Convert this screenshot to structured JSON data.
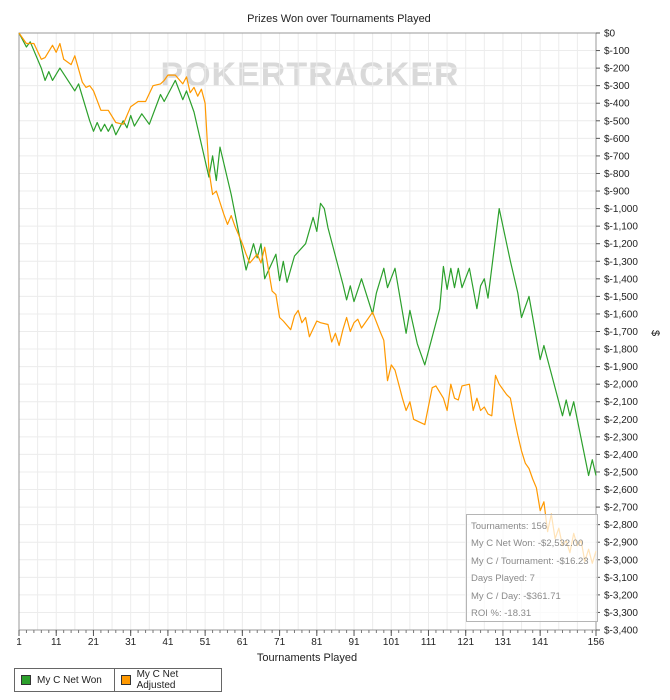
{
  "chart_data": {
    "type": "line",
    "title": "Prizes Won over Tournaments Played",
    "xlabel": "Tournaments Played",
    "ylabel": "$",
    "watermark": "POKERTRACKER",
    "xlim": [
      1,
      156
    ],
    "ylim": [
      -3400,
      0
    ],
    "x_ticks": [
      1,
      11,
      21,
      31,
      41,
      51,
      61,
      71,
      81,
      91,
      101,
      111,
      121,
      131,
      141,
      156
    ],
    "y_ticks": [
      0,
      -100,
      -200,
      -300,
      -400,
      -500,
      -600,
      -700,
      -800,
      -900,
      -1000,
      -1100,
      -1200,
      -1300,
      -1400,
      -1500,
      -1600,
      -1700,
      -1800,
      -1900,
      -2000,
      -2100,
      -2200,
      -2300,
      -2400,
      -2500,
      -2600,
      -2700,
      -2800,
      -2900,
      -3000,
      -3100,
      -3200,
      -3300,
      -3400
    ],
    "y_tick_labels": [
      "$0",
      "$-100",
      "$-200",
      "$-300",
      "$-400",
      "$-500",
      "$-600",
      "$-700",
      "$-800",
      "$-900",
      "$-1,000",
      "$-1,100",
      "$-1,200",
      "$-1,300",
      "$-1,400",
      "$-1,500",
      "$-1,600",
      "$-1,700",
      "$-1,800",
      "$-1,900",
      "$-2,000",
      "$-2,100",
      "$-2,200",
      "$-2,300",
      "$-2,400",
      "$-2,500",
      "$-2,600",
      "$-2,700",
      "$-2,800",
      "$-2,900",
      "$-3,000",
      "$-3,100",
      "$-3,200",
      "$-3,300",
      "$-3,400"
    ],
    "grid": true,
    "legend_position": "bottom-left",
    "series": [
      {
        "name": "My C Net Won",
        "color": "#2ca02c",
        "points": [
          [
            1,
            0
          ],
          [
            3,
            -80
          ],
          [
            4,
            -50
          ],
          [
            7,
            -200
          ],
          [
            8,
            -270
          ],
          [
            9,
            -220
          ],
          [
            10,
            -270
          ],
          [
            12,
            -200
          ],
          [
            16,
            -330
          ],
          [
            17,
            -290
          ],
          [
            20,
            -500
          ],
          [
            21,
            -560
          ],
          [
            22,
            -510
          ],
          [
            23,
            -560
          ],
          [
            24,
            -520
          ],
          [
            25,
            -560
          ],
          [
            26,
            -520
          ],
          [
            27,
            -580
          ],
          [
            29,
            -500
          ],
          [
            30,
            -540
          ],
          [
            31,
            -470
          ],
          [
            32,
            -530
          ],
          [
            34,
            -460
          ],
          [
            36,
            -520
          ],
          [
            39,
            -350
          ],
          [
            40,
            -390
          ],
          [
            43,
            -270
          ],
          [
            45,
            -380
          ],
          [
            46,
            -330
          ],
          [
            48,
            -450
          ],
          [
            52,
            -820
          ],
          [
            53,
            -700
          ],
          [
            54,
            -840
          ],
          [
            55,
            -650
          ],
          [
            58,
            -920
          ],
          [
            62,
            -1350
          ],
          [
            64,
            -1200
          ],
          [
            65,
            -1280
          ],
          [
            66,
            -1200
          ],
          [
            67,
            -1400
          ],
          [
            70,
            -1260
          ],
          [
            71,
            -1410
          ],
          [
            72,
            -1300
          ],
          [
            73,
            -1420
          ],
          [
            75,
            -1270
          ],
          [
            78,
            -1200
          ],
          [
            80,
            -1050
          ],
          [
            81,
            -1130
          ],
          [
            82,
            -970
          ],
          [
            83,
            -1000
          ],
          [
            84,
            -1110
          ],
          [
            87,
            -1350
          ],
          [
            88,
            -1430
          ],
          [
            89,
            -1520
          ],
          [
            90,
            -1440
          ],
          [
            91,
            -1530
          ],
          [
            93,
            -1400
          ],
          [
            96,
            -1600
          ],
          [
            97,
            -1480
          ],
          [
            99,
            -1340
          ],
          [
            100,
            -1450
          ],
          [
            102,
            -1340
          ],
          [
            105,
            -1710
          ],
          [
            106,
            -1580
          ],
          [
            108,
            -1770
          ],
          [
            110,
            -1890
          ],
          [
            114,
            -1570
          ],
          [
            115,
            -1330
          ],
          [
            116,
            -1460
          ],
          [
            117,
            -1340
          ],
          [
            118,
            -1450
          ],
          [
            119,
            -1340
          ],
          [
            120,
            -1450
          ],
          [
            122,
            -1340
          ],
          [
            124,
            -1570
          ],
          [
            125,
            -1440
          ],
          [
            126,
            -1400
          ],
          [
            127,
            -1510
          ],
          [
            130,
            -1000
          ],
          [
            133,
            -1300
          ],
          [
            135,
            -1480
          ],
          [
            136,
            -1620
          ],
          [
            138,
            -1500
          ],
          [
            141,
            -1860
          ],
          [
            142,
            -1780
          ],
          [
            143,
            -1860
          ],
          [
            147,
            -2180
          ],
          [
            148,
            -2090
          ],
          [
            149,
            -2180
          ],
          [
            150,
            -2100
          ],
          [
            154,
            -2520
          ],
          [
            155,
            -2430
          ],
          [
            156,
            -2520
          ]
        ]
      },
      {
        "name": "My C Net Adjusted",
        "color": "#ff9900",
        "points": [
          [
            1,
            0
          ],
          [
            3,
            -60
          ],
          [
            5,
            -60
          ],
          [
            7,
            -150
          ],
          [
            8,
            -140
          ],
          [
            10,
            -70
          ],
          [
            11,
            -110
          ],
          [
            12,
            -60
          ],
          [
            13,
            -150
          ],
          [
            15,
            -180
          ],
          [
            16,
            -130
          ],
          [
            18,
            -280
          ],
          [
            19,
            -310
          ],
          [
            20,
            -300
          ],
          [
            21,
            -330
          ],
          [
            23,
            -440
          ],
          [
            25,
            -440
          ],
          [
            27,
            -510
          ],
          [
            29,
            -520
          ],
          [
            31,
            -420
          ],
          [
            33,
            -390
          ],
          [
            35,
            -390
          ],
          [
            37,
            -300
          ],
          [
            39,
            -290
          ],
          [
            40,
            -270
          ],
          [
            41,
            -240
          ],
          [
            43,
            -240
          ],
          [
            45,
            -290
          ],
          [
            46,
            -250
          ],
          [
            47,
            -340
          ],
          [
            48,
            -310
          ],
          [
            49,
            -360
          ],
          [
            50,
            -320
          ],
          [
            51,
            -400
          ],
          [
            52,
            -780
          ],
          [
            53,
            -920
          ],
          [
            54,
            -900
          ],
          [
            56,
            -1030
          ],
          [
            57,
            -1090
          ],
          [
            58,
            -1040
          ],
          [
            59,
            -1100
          ],
          [
            61,
            -1200
          ],
          [
            62,
            -1260
          ],
          [
            63,
            -1310
          ],
          [
            65,
            -1260
          ],
          [
            66,
            -1310
          ],
          [
            67,
            -1220
          ],
          [
            69,
            -1470
          ],
          [
            70,
            -1490
          ],
          [
            71,
            -1620
          ],
          [
            72,
            -1640
          ],
          [
            74,
            -1690
          ],
          [
            75,
            -1610
          ],
          [
            76,
            -1580
          ],
          [
            77,
            -1650
          ],
          [
            78,
            -1620
          ],
          [
            79,
            -1730
          ],
          [
            81,
            -1640
          ],
          [
            82,
            -1650
          ],
          [
            84,
            -1660
          ],
          [
            85,
            -1760
          ],
          [
            86,
            -1710
          ],
          [
            87,
            -1780
          ],
          [
            88,
            -1690
          ],
          [
            89,
            -1620
          ],
          [
            90,
            -1700
          ],
          [
            91,
            -1650
          ],
          [
            92,
            -1630
          ],
          [
            93,
            -1680
          ],
          [
            96,
            -1590
          ],
          [
            98,
            -1700
          ],
          [
            99,
            -1750
          ],
          [
            100,
            -1980
          ],
          [
            101,
            -1890
          ],
          [
            102,
            -1920
          ],
          [
            104,
            -2080
          ],
          [
            105,
            -2150
          ],
          [
            106,
            -2100
          ],
          [
            107,
            -2200
          ],
          [
            110,
            -2230
          ],
          [
            112,
            -2020
          ],
          [
            113,
            -2010
          ],
          [
            115,
            -2080
          ],
          [
            116,
            -2150
          ],
          [
            117,
            -2000
          ],
          [
            118,
            -2080
          ],
          [
            119,
            -2090
          ],
          [
            120,
            -2010
          ],
          [
            122,
            -2000
          ],
          [
            123,
            -2150
          ],
          [
            124,
            -2080
          ],
          [
            125,
            -2150
          ],
          [
            126,
            -2130
          ],
          [
            127,
            -2170
          ],
          [
            128,
            -2180
          ],
          [
            129,
            -1950
          ],
          [
            130,
            -2000
          ],
          [
            131,
            -2030
          ],
          [
            132,
            -2060
          ],
          [
            133,
            -2080
          ],
          [
            134,
            -2190
          ],
          [
            135,
            -2290
          ],
          [
            136,
            -2380
          ],
          [
            137,
            -2450
          ],
          [
            138,
            -2480
          ],
          [
            139,
            -2540
          ],
          [
            140,
            -2590
          ],
          [
            141,
            -2720
          ],
          [
            142,
            -2670
          ],
          [
            143,
            -2840
          ],
          [
            144,
            -2740
          ],
          [
            145,
            -2880
          ],
          [
            146,
            -2820
          ],
          [
            147,
            -2920
          ],
          [
            148,
            -2890
          ],
          [
            149,
            -2960
          ],
          [
            150,
            -2850
          ],
          [
            151,
            -2920
          ],
          [
            152,
            -2890
          ],
          [
            153,
            -3010
          ],
          [
            154,
            -2940
          ],
          [
            155,
            -3020
          ],
          [
            156,
            -2950
          ]
        ]
      }
    ]
  },
  "stats": {
    "tournaments": "Tournaments: 156",
    "net_won": "My C Net Won: -$2,532.00",
    "per_tournament": "My C / Tournament: -$16.23",
    "days_played": "Days Played: 7",
    "per_day": "My C / Day: -$361.71",
    "roi": "ROI %: -18.31"
  },
  "legend": {
    "item1_label": "My C Net Won",
    "item2_label": "My C Net Adjusted",
    "item1_color": "#2ca02c",
    "item2_color": "#ff9900"
  }
}
